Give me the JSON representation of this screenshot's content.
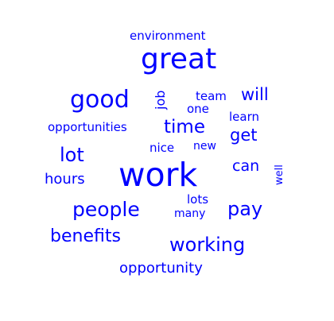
{
  "words": {
    "environment": "environment",
    "great": "great",
    "good": "good",
    "job": "job",
    "team": "team",
    "will": "will",
    "one": "one",
    "learn": "learn",
    "opportunities": "opportunities",
    "time": "time",
    "get": "get",
    "nice": "nice",
    "new": "new",
    "lot": "lot",
    "can": "can",
    "hours": "hours",
    "work": "work",
    "well": "well",
    "lots": "lots",
    "people": "people",
    "many": "many",
    "pay": "pay",
    "benefits": "benefits",
    "working": "working",
    "opportunity": "opportunity"
  },
  "colors": {
    "word": "#0000ff",
    "background": "#ffffff"
  }
}
